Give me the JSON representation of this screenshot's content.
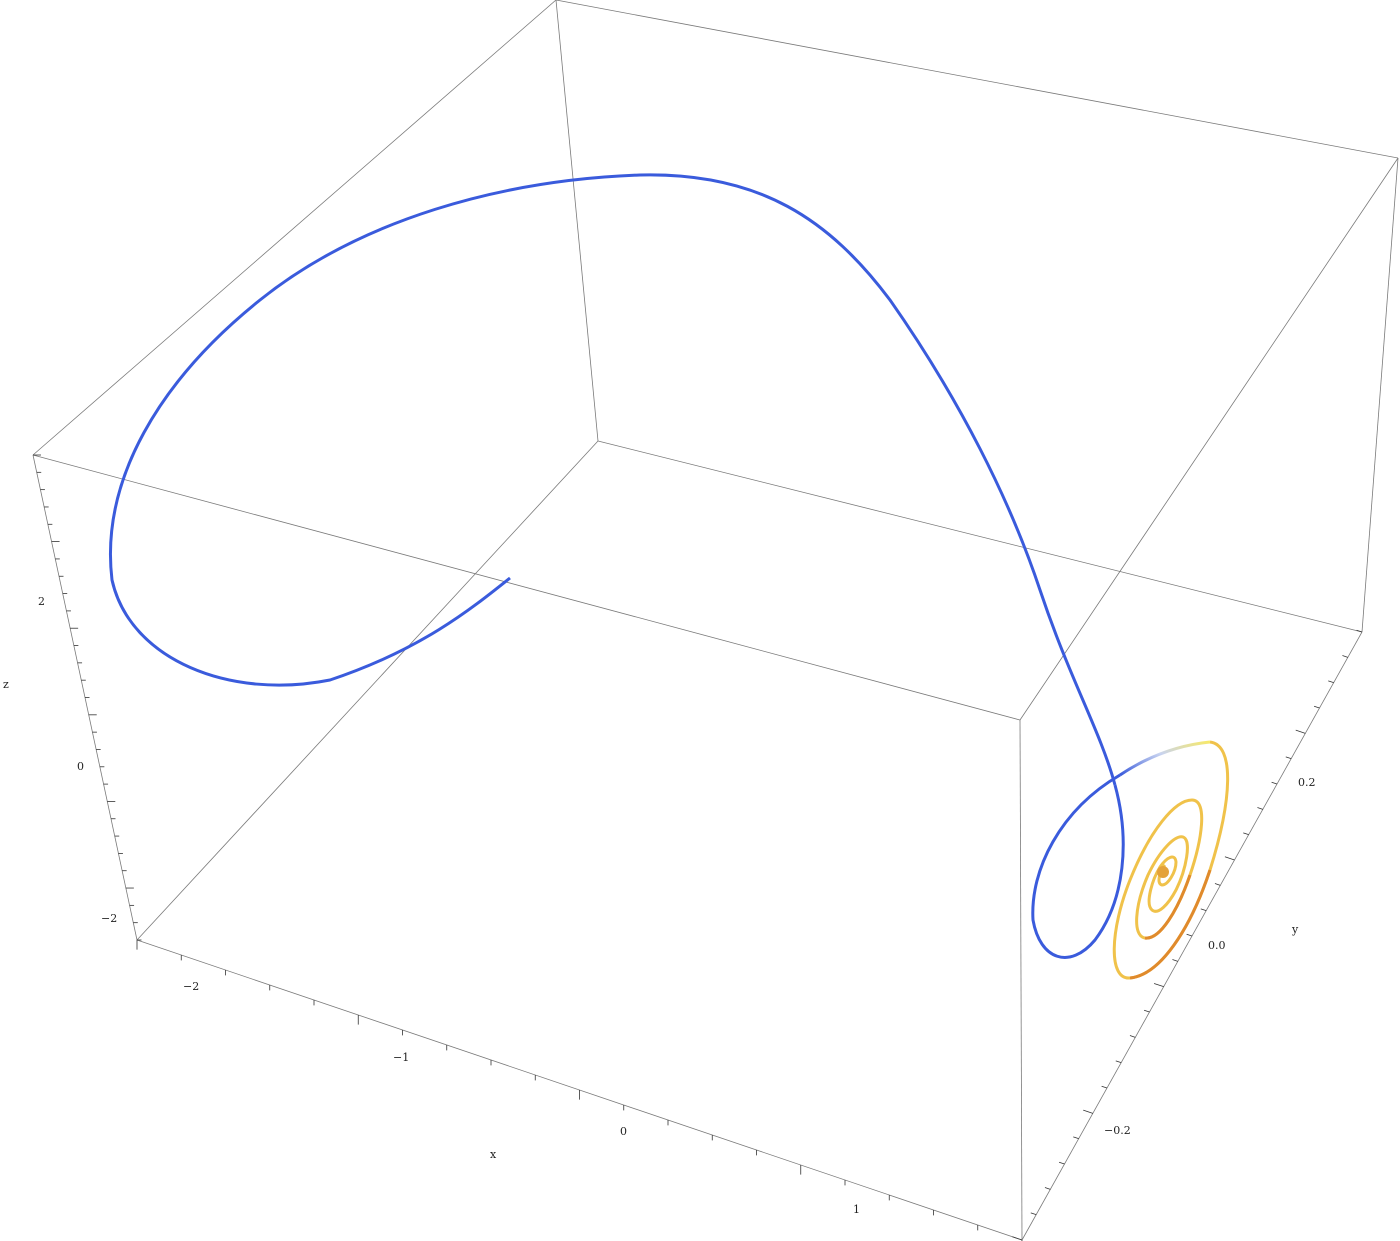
{
  "chart_data": {
    "type": "line",
    "dimensions": 3,
    "axes": {
      "x": {
        "label": "x",
        "ticks": [
          "−2",
          "−1",
          "0",
          "1"
        ],
        "tick_values": [
          -2,
          -1,
          0,
          1
        ],
        "range": [
          -2.4,
          1.8
        ]
      },
      "y": {
        "label": "y",
        "ticks": [
          "−0.2",
          "0.0",
          "0.2"
        ],
        "tick_values": [
          -0.2,
          0.0,
          0.2
        ],
        "range": [
          -0.3,
          0.3
        ]
      },
      "z": {
        "label": "z",
        "ticks": [
          "−2",
          "0",
          "2"
        ],
        "tick_values": [
          -2,
          0,
          2
        ],
        "range": [
          -2.4,
          3.3
        ]
      }
    },
    "box": true,
    "grid": false,
    "series": [
      {
        "style": "blue arc then fading spiral",
        "color_start": "#3a5bdc",
        "color_mid": "#c9d4f0",
        "color_spiral_outer": "#f7e96a",
        "color_spiral_inner": "#e08a2c",
        "description_visible": "curve starting near the middle, looping up and over, descending to a spiral that converges toward the right face"
      }
    ]
  }
}
